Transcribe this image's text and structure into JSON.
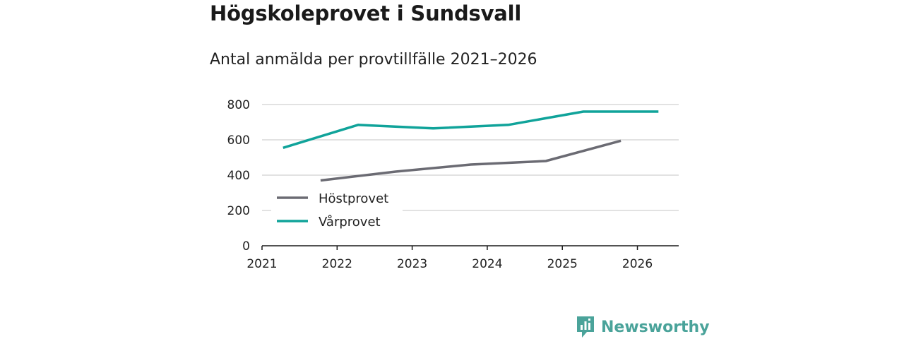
{
  "header": {
    "title": "Högskoleprovet i Sundsvall",
    "subtitle": "Antal anmälda per provtillfälle 2021–2026"
  },
  "brand": {
    "name": "Newsworthy",
    "icon": "newsworthy-logo-icon",
    "color": "#4aa39a"
  },
  "chart_data": {
    "type": "line",
    "title": "Högskoleprovet i Sundsvall",
    "subtitle": "Antal anmälda per provtillfälle 2021–2026",
    "xlabel": "",
    "ylabel": "",
    "xlim": [
      2021,
      2026.55
    ],
    "ylim": [
      0,
      800
    ],
    "yticks": [
      0,
      200,
      400,
      600,
      800
    ],
    "xticks": [
      2021,
      2022,
      2023,
      2024,
      2025,
      2026
    ],
    "ytick_labels": [
      "0",
      "200",
      "400",
      "600",
      "800"
    ],
    "xtick_labels": [
      "2021",
      "2022",
      "2023",
      "2024",
      "2025",
      "2026"
    ],
    "grid": true,
    "legend_position": "lower-left",
    "series": [
      {
        "name": "Höstprovet",
        "color": "#6b6b73",
        "x": [
          2021.78,
          2022.78,
          2023.78,
          2024.78,
          2025.78
        ],
        "values": [
          370,
          420,
          460,
          480,
          595
        ]
      },
      {
        "name": "Vårprovet",
        "color": "#10a39a",
        "x": [
          2021.28,
          2022.28,
          2023.28,
          2024.28,
          2025.28,
          2026.28
        ],
        "values": [
          555,
          685,
          665,
          685,
          760,
          760
        ]
      }
    ]
  }
}
